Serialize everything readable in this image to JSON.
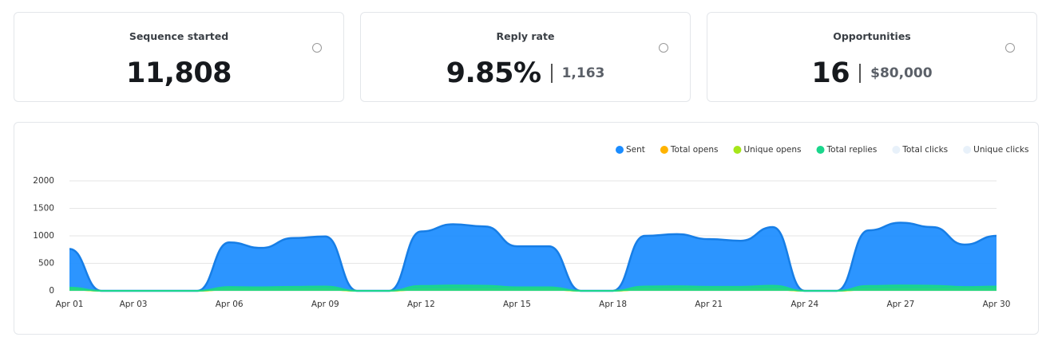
{
  "cards": [
    {
      "title": "Sequence started",
      "value": "11,808"
    },
    {
      "title": "Reply rate",
      "value": "9.85%",
      "secondary": "1,163"
    },
    {
      "title": "Opportunities",
      "value": "16",
      "secondary": "$80,000"
    }
  ],
  "chart_data": {
    "type": "area",
    "categories": [
      "Apr 01",
      null,
      "Apr 03",
      null,
      null,
      "Apr 06",
      null,
      null,
      "Apr 09",
      null,
      null,
      "Apr 12",
      null,
      null,
      "Apr 15",
      null,
      null,
      "Apr 18",
      null,
      null,
      "Apr 21",
      null,
      null,
      "Apr 24",
      null,
      null,
      "Apr 27",
      null,
      null,
      "Apr 30"
    ],
    "ylim": [
      0,
      2000
    ],
    "yticks": [
      0,
      500,
      1000,
      1500,
      2000
    ],
    "grid": true,
    "legend": "top-right",
    "series": [
      {
        "name": "Sent",
        "color": "#1a8cff",
        "enabled": true,
        "values": [
          760,
          0,
          0,
          0,
          0,
          880,
          780,
          960,
          990,
          0,
          0,
          1080,
          1210,
          1170,
          810,
          810,
          0,
          0,
          1000,
          1030,
          940,
          910,
          1160,
          0,
          0,
          1100,
          1240,
          1160,
          840,
          1000
        ]
      },
      {
        "name": "Total opens",
        "color": "#ffb300",
        "enabled": true,
        "values": [
          30,
          0,
          0,
          0,
          0,
          30,
          30,
          30,
          30,
          0,
          0,
          30,
          30,
          30,
          30,
          30,
          0,
          0,
          30,
          30,
          30,
          30,
          30,
          0,
          0,
          30,
          30,
          30,
          30,
          30
        ]
      },
      {
        "name": "Unique opens",
        "color": "#a6e61a",
        "enabled": true,
        "values": [
          25,
          0,
          0,
          0,
          0,
          25,
          25,
          25,
          25,
          0,
          0,
          25,
          25,
          25,
          25,
          25,
          0,
          0,
          25,
          25,
          25,
          25,
          25,
          0,
          0,
          25,
          25,
          25,
          25,
          25
        ]
      },
      {
        "name": "Total replies",
        "color": "#1ad68c",
        "enabled": true,
        "values": [
          60,
          0,
          0,
          0,
          0,
          70,
          65,
          75,
          80,
          0,
          0,
          90,
          100,
          95,
          65,
          65,
          0,
          0,
          80,
          85,
          75,
          75,
          95,
          0,
          0,
          90,
          100,
          95,
          70,
          80
        ]
      },
      {
        "name": "Total clicks",
        "color": "#e8f1fa",
        "enabled": false,
        "values": [
          0,
          0,
          0,
          0,
          0,
          0,
          0,
          0,
          0,
          0,
          0,
          0,
          0,
          0,
          0,
          0,
          0,
          0,
          0,
          0,
          0,
          0,
          0,
          0,
          0,
          0,
          0,
          0,
          0,
          0
        ]
      },
      {
        "name": "Unique clicks",
        "color": "#e8f1fa",
        "enabled": false,
        "values": [
          0,
          0,
          0,
          0,
          0,
          0,
          0,
          0,
          0,
          0,
          0,
          0,
          0,
          0,
          0,
          0,
          0,
          0,
          0,
          0,
          0,
          0,
          0,
          0,
          0,
          0,
          0,
          0,
          0,
          0
        ]
      }
    ]
  }
}
